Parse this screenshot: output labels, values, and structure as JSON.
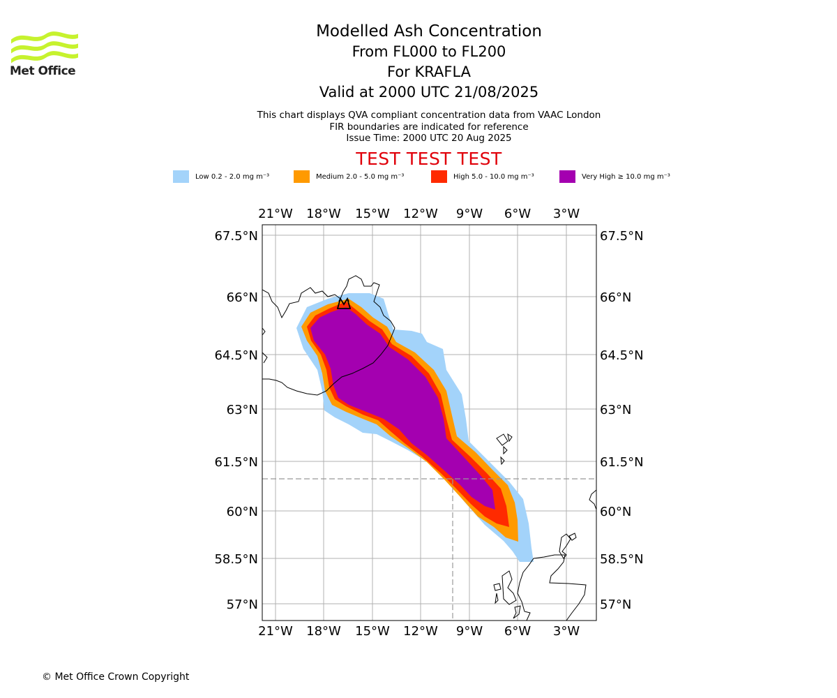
{
  "logo": {
    "text": "Met Office",
    "icon": "met-office-waves-logo",
    "color": "#c6f22e"
  },
  "title": {
    "line1": "Modelled Ash Concentration",
    "line2": "From FL000 to FL200",
    "line3": "For KRAFLA",
    "line4": "Valid at 2000 UTC 21/08/2025"
  },
  "subtitle": {
    "line1": "This chart displays QVA compliant concentration data from VAAC London",
    "line2": "FIR boundaries are indicated for reference",
    "line3": "Issue Time: 2000 UTC 20 Aug 2025"
  },
  "test_banner": "TEST TEST TEST",
  "legend": [
    {
      "label": "Low 0.2 - 2.0 mg m⁻³",
      "color": "#a3d3fa"
    },
    {
      "label": "Medium 2.0 - 5.0 mg m⁻³",
      "color": "#ff9a00"
    },
    {
      "label": "High 5.0 - 10.0 mg m⁻³",
      "color": "#ff2a00"
    },
    {
      "label": "Very High ≥ 10.0 mg m⁻³",
      "color": "#a400b0"
    }
  ],
  "map": {
    "lon_ticks": [
      "21°W",
      "18°W",
      "15°W",
      "12°W",
      "9°W",
      "6°W",
      "3°W"
    ],
    "lat_ticks": [
      "67.5°N",
      "66°N",
      "64.5°N",
      "63°N",
      "61.5°N",
      "60°N",
      "58.5°N",
      "57°N"
    ],
    "volcano_marker": "volcano-icon"
  },
  "copyright": "© Met Office Crown Copyright"
}
